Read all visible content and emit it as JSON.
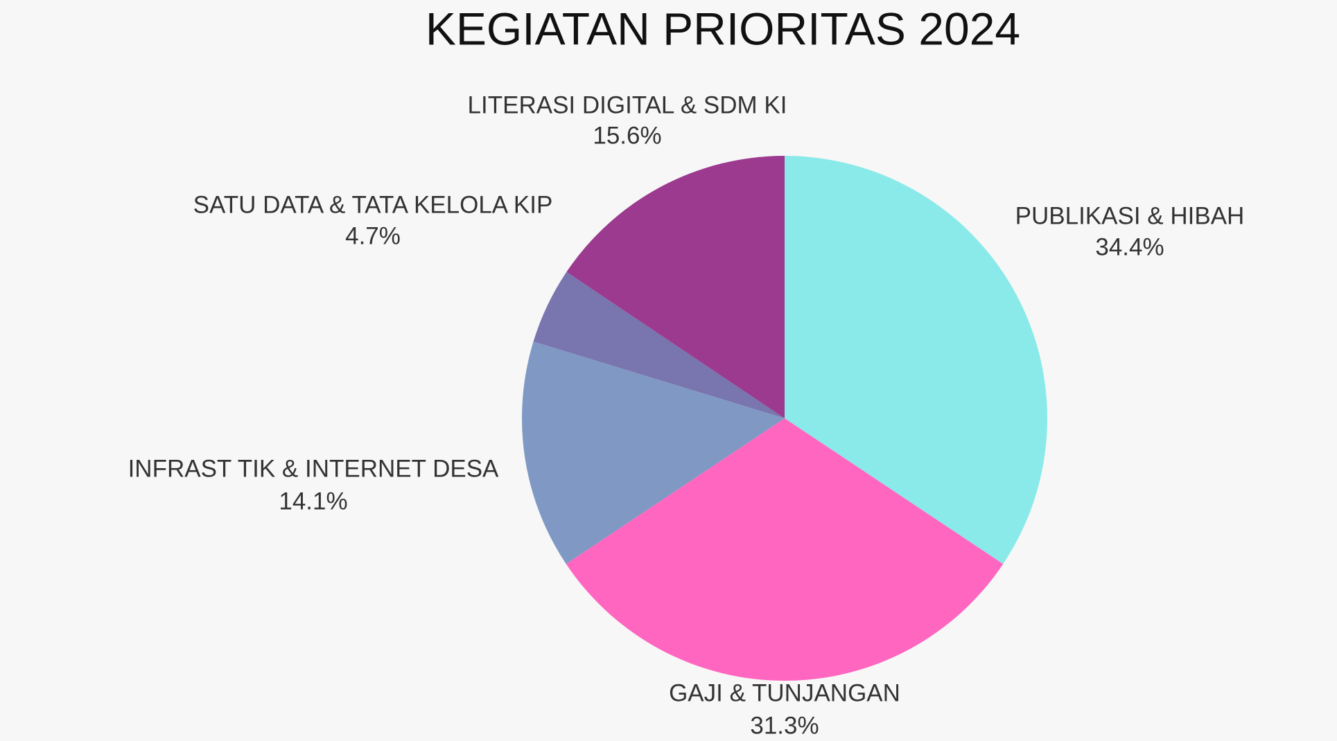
{
  "chart_data": {
    "type": "pie",
    "title": "KEGIATAN PRIORITAS 2024",
    "categories": [
      "PUBLIKASI & HIBAH",
      "GAJI & TUNJANGAN",
      "INFRAST TIK & INTERNET DESA",
      "SATU DATA & TATA KELOLA KIP",
      "LITERASI DIGITAL & SDM KI"
    ],
    "values": [
      34.4,
      31.3,
      14.1,
      4.7,
      15.6
    ],
    "value_labels": [
      "34.4%",
      "31.3%",
      "14.1%",
      "4.7%",
      "15.6%"
    ],
    "colors": [
      "#8aeaea",
      "#ff66c0",
      "#8099c4",
      "#7975ae",
      "#9b3a8e"
    ]
  }
}
